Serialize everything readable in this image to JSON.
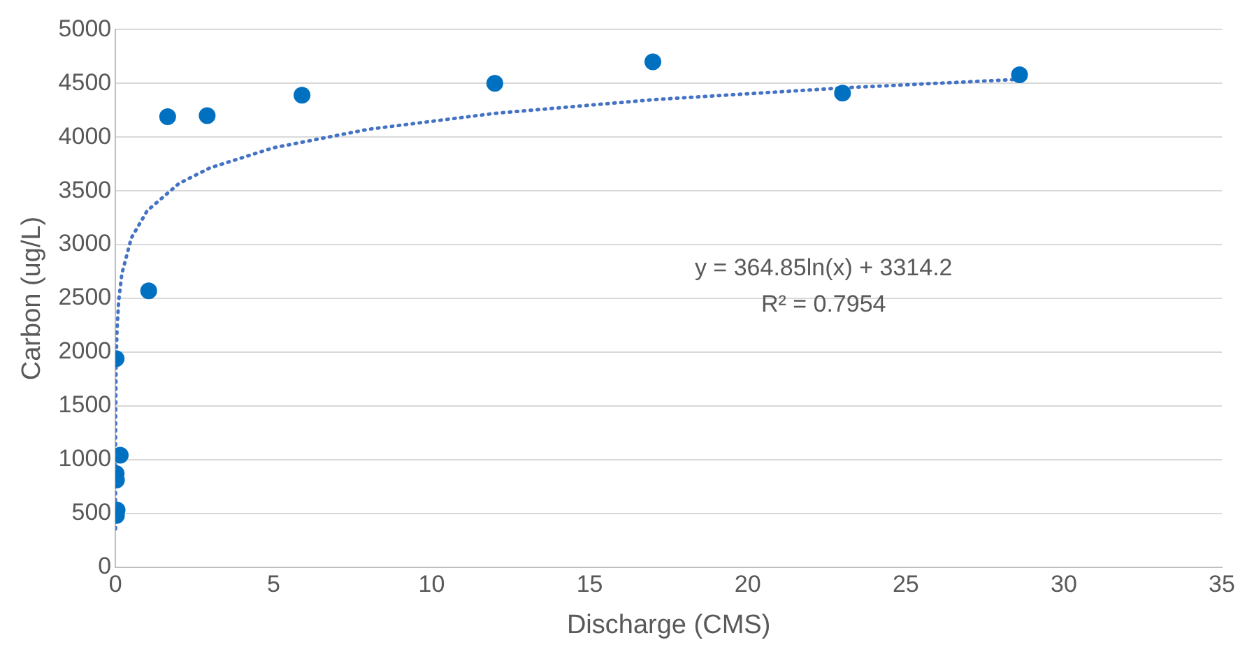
{
  "chart_data": {
    "type": "scatter",
    "xlabel": "Discharge (CMS)",
    "ylabel": "Carbon (ug/L)",
    "xlim": [
      0,
      35
    ],
    "xticks": [
      0,
      5,
      10,
      15,
      20,
      25,
      30,
      35
    ],
    "ylim": [
      0,
      5000
    ],
    "yticks": [
      0,
      500,
      1000,
      1500,
      2000,
      2500,
      3000,
      3500,
      4000,
      4500,
      5000
    ],
    "grid": "y",
    "legend": false,
    "marker": "circle",
    "series": [
      {
        "color": "#0070c0",
        "x": [
          0.02,
          0.15,
          0.02,
          0.03,
          0.05,
          0.03,
          1.05,
          1.65,
          2.9,
          5.9,
          12,
          17,
          23,
          28.6
        ],
        "values": [
          1940,
          1040,
          870,
          810,
          530,
          480,
          2570,
          4190,
          4200,
          4390,
          4500,
          4700,
          4410,
          4580
        ]
      },
      {
        "type": "line",
        "color": "#4472c4",
        "line_style": "dotted",
        "marker": "none",
        "x": [
          0.0003,
          0.001,
          0.005,
          0.02,
          0.05,
          0.1,
          0.2,
          0.5,
          1,
          2,
          3,
          5,
          8,
          12,
          17,
          23,
          28.6
        ],
        "values": [
          355,
          794,
          1381,
          1887,
          2221,
          2474,
          2727,
          3061,
          3314,
          3567,
          3715,
          3901,
          4073,
          4221,
          4348,
          4458,
          4538
        ]
      }
    ],
    "annotations": [
      "y = 364.85ln(x) + 3314.2",
      "R² = 0.7954"
    ]
  }
}
